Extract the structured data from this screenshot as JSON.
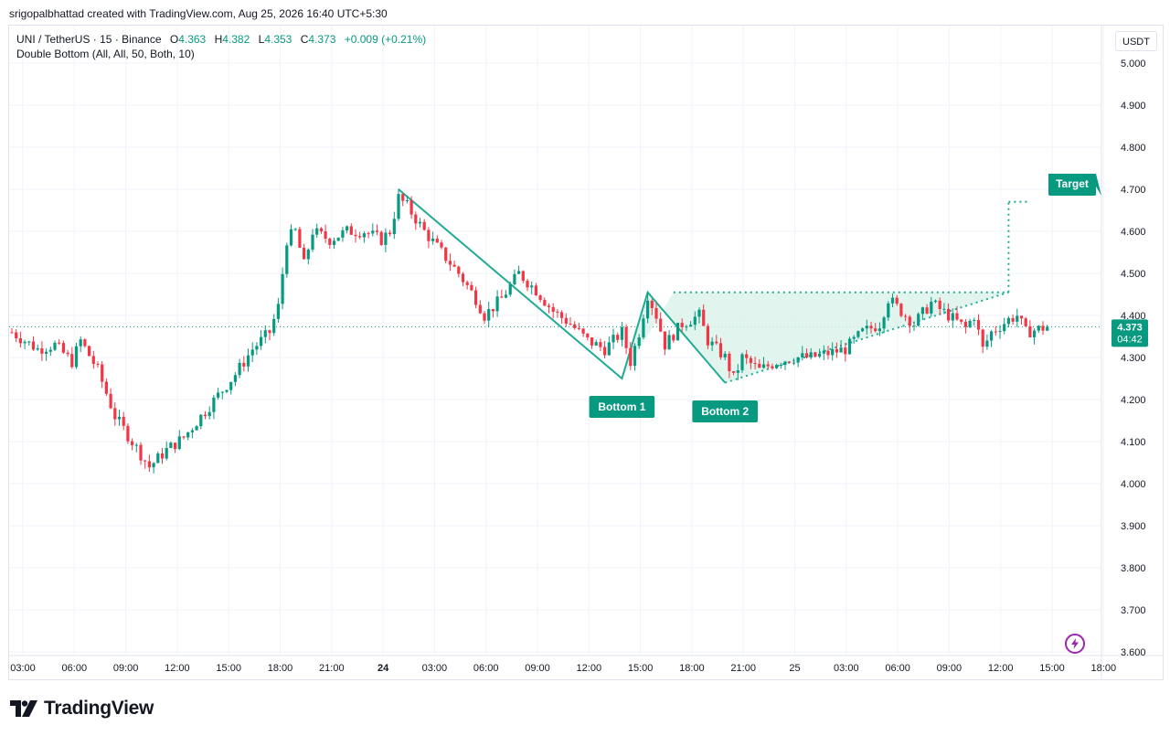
{
  "credit": "srigopalbhattad created with TradingView.com, Aug 25, 2026 16:40 UTC+5:30",
  "legend": {
    "symbol": "UNI / TetherUS · 15 · Binance",
    "open_label": "O",
    "open": "4.363",
    "high_label": "H",
    "high": "4.382",
    "low_label": "L",
    "low": "4.353",
    "close_label": "C",
    "close": "4.373",
    "change": "+0.009 (+0.21%)"
  },
  "indicator": "Double Bottom (All, All, 50, Both, 10)",
  "currency": "USDT",
  "logo_text": "TradingView",
  "colors": {
    "up": "#089981",
    "down": "#f23645",
    "pattern": "#22ab94",
    "fill": "#d9f2ea",
    "price_tag": "#089981"
  },
  "chart_data": {
    "type": "candlestick",
    "ylim": [
      3.6,
      5.0
    ],
    "y_ticks": [
      "5.000",
      "4.900",
      "4.800",
      "4.700",
      "4.600",
      "4.500",
      "4.400",
      "4.300",
      "4.200",
      "4.100",
      "4.000",
      "3.900",
      "3.800",
      "3.700",
      "3.600"
    ],
    "x_ticks": [
      {
        "label": "03:00",
        "bold": false
      },
      {
        "label": "06:00",
        "bold": false
      },
      {
        "label": "09:00",
        "bold": false
      },
      {
        "label": "12:00",
        "bold": false
      },
      {
        "label": "15:00",
        "bold": false
      },
      {
        "label": "18:00",
        "bold": false
      },
      {
        "label": "21:00",
        "bold": false
      },
      {
        "label": "24",
        "bold": true
      },
      {
        "label": "03:00",
        "bold": false
      },
      {
        "label": "06:00",
        "bold": false
      },
      {
        "label": "09:00",
        "bold": false
      },
      {
        "label": "12:00",
        "bold": false
      },
      {
        "label": "15:00",
        "bold": false
      },
      {
        "label": "18:00",
        "bold": false
      },
      {
        "label": "21:00",
        "bold": false
      },
      {
        "label": "25",
        "bold": false
      },
      {
        "label": "03:00",
        "bold": false
      },
      {
        "label": "06:00",
        "bold": false
      },
      {
        "label": "09:00",
        "bold": false
      },
      {
        "label": "12:00",
        "bold": false
      },
      {
        "label": "15:00",
        "bold": false
      },
      {
        "label": "18:00",
        "bold": false
      }
    ],
    "price_anchors": [
      [
        0,
        4.36
      ],
      [
        6,
        4.32
      ],
      [
        10,
        4.33
      ],
      [
        14,
        4.29
      ],
      [
        16,
        4.34
      ],
      [
        20,
        4.27
      ],
      [
        24,
        4.16
      ],
      [
        28,
        4.1
      ],
      [
        32,
        4.04
      ],
      [
        36,
        4.08
      ],
      [
        40,
        4.11
      ],
      [
        44,
        4.16
      ],
      [
        48,
        4.21
      ],
      [
        52,
        4.26
      ],
      [
        56,
        4.32
      ],
      [
        60,
        4.36
      ],
      [
        62,
        4.42
      ],
      [
        64,
        4.58
      ],
      [
        66,
        4.6
      ],
      [
        68,
        4.52
      ],
      [
        70,
        4.6
      ],
      [
        74,
        4.58
      ],
      [
        78,
        4.6
      ],
      [
        82,
        4.6
      ],
      [
        86,
        4.58
      ],
      [
        88,
        4.6
      ],
      [
        90,
        4.68
      ],
      [
        92,
        4.66
      ],
      [
        96,
        4.6
      ],
      [
        100,
        4.55
      ],
      [
        104,
        4.5
      ],
      [
        108,
        4.44
      ],
      [
        110,
        4.4
      ],
      [
        114,
        4.44
      ],
      [
        118,
        4.5
      ],
      [
        122,
        4.46
      ],
      [
        126,
        4.41
      ],
      [
        130,
        4.38
      ],
      [
        134,
        4.34
      ],
      [
        138,
        4.32
      ],
      [
        142,
        4.36
      ],
      [
        144,
        4.29
      ],
      [
        146,
        4.36
      ],
      [
        148,
        4.45
      ],
      [
        150,
        4.4
      ],
      [
        152,
        4.33
      ],
      [
        156,
        4.38
      ],
      [
        160,
        4.4
      ],
      [
        162,
        4.34
      ],
      [
        166,
        4.3
      ],
      [
        168,
        4.25
      ],
      [
        170,
        4.3
      ],
      [
        174,
        4.27
      ],
      [
        178,
        4.29
      ],
      [
        182,
        4.3
      ],
      [
        186,
        4.3
      ],
      [
        190,
        4.31
      ],
      [
        194,
        4.32
      ],
      [
        198,
        4.36
      ],
      [
        202,
        4.38
      ],
      [
        204,
        4.44
      ],
      [
        206,
        4.42
      ],
      [
        210,
        4.38
      ],
      [
        214,
        4.43
      ],
      [
        218,
        4.4
      ],
      [
        222,
        4.37
      ],
      [
        224,
        4.4
      ],
      [
        226,
        4.32
      ],
      [
        228,
        4.36
      ],
      [
        232,
        4.39
      ],
      [
        234,
        4.4
      ],
      [
        236,
        4.36
      ],
      [
        240,
        4.37
      ],
      [
        241,
        4.373
      ]
    ],
    "pattern_points": [
      {
        "label": "",
        "t": 90,
        "price": 4.7
      },
      {
        "label": "Bottom 1",
        "t": 142,
        "price": 4.25
      },
      {
        "label": "",
        "t": 148,
        "price": 4.455
      },
      {
        "label": "Bottom 2",
        "t": 166,
        "price": 4.24
      }
    ],
    "neckline": {
      "start_t": 154,
      "end_t": 232,
      "price": 4.455
    },
    "support_line": {
      "start": [
        166,
        4.24
      ],
      "end": [
        232,
        4.455
      ]
    },
    "target": {
      "label": "Target",
      "t": 232,
      "price": 4.67
    },
    "last_price": {
      "value": "4.373",
      "countdown": "04:42"
    }
  }
}
